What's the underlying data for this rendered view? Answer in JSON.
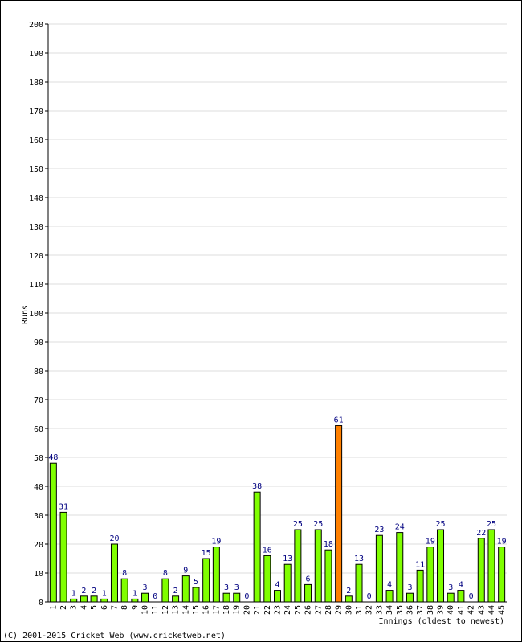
{
  "chart_data": {
    "type": "bar",
    "ylabel": "Runs",
    "xlabel": "Innings (oldest to newest)",
    "ylim": [
      0,
      200
    ],
    "ytick_step": 10,
    "grid": true,
    "categories": [
      "1",
      "2",
      "3",
      "4",
      "5",
      "6",
      "7",
      "8",
      "9",
      "10",
      "11",
      "12",
      "13",
      "14",
      "15",
      "16",
      "17",
      "18",
      "19",
      "20",
      "21",
      "22",
      "23",
      "24",
      "25",
      "26",
      "27",
      "28",
      "29",
      "30",
      "31",
      "32",
      "33",
      "34",
      "35",
      "36",
      "37",
      "38",
      "39",
      "40",
      "41",
      "42",
      "43",
      "44",
      "45"
    ],
    "values": [
      48,
      31,
      1,
      2,
      2,
      1,
      20,
      8,
      1,
      3,
      0,
      8,
      2,
      9,
      5,
      15,
      19,
      3,
      3,
      0,
      38,
      16,
      4,
      13,
      25,
      6,
      25,
      18,
      61,
      2,
      13,
      0,
      23,
      4,
      24,
      3,
      11,
      19,
      25,
      3,
      4,
      0,
      22,
      25,
      19
    ],
    "highlight_index": 28,
    "colors": {
      "bar": "#80ff00",
      "highlight": "#ff8000",
      "grid": "#dddddd",
      "label": "#000080"
    }
  },
  "footer": {
    "copyright": "(C) 2001-2015 Cricket Web (www.cricketweb.net)"
  }
}
